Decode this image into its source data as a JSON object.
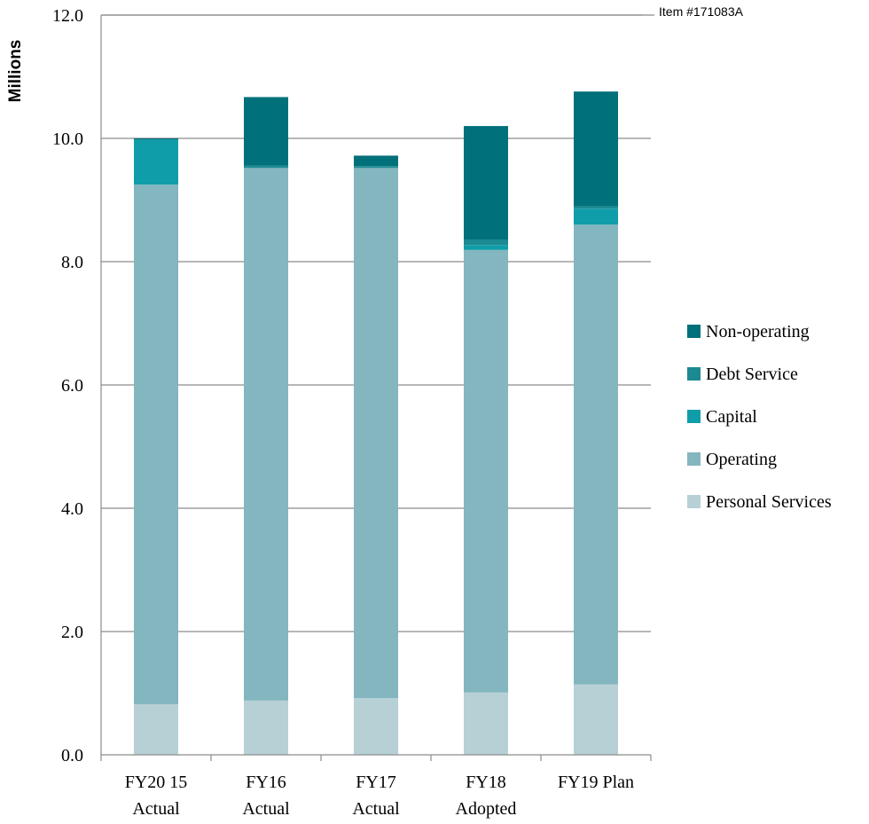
{
  "note": "Item #171083A",
  "chart_data": {
    "type": "bar",
    "stacked": true,
    "ylabel": "Millions",
    "ylim": [
      0,
      12
    ],
    "yticks": [
      "0.0",
      "2.0",
      "4.0",
      "6.0",
      "8.0",
      "10.0",
      "12.0"
    ],
    "grid": true,
    "legend_position": "right",
    "categories": [
      [
        "FY20 15",
        "Actual"
      ],
      [
        "FY16",
        "Actual"
      ],
      [
        "FY17",
        "Actual"
      ],
      [
        "FY18",
        "Adopted"
      ],
      [
        "FY19 Plan"
      ]
    ],
    "series": [
      {
        "name": "Personal Services",
        "color": "#b7d0d6",
        "values": [
          0.82,
          0.88,
          0.92,
          1.01,
          1.14
        ]
      },
      {
        "name": "Operating",
        "color": "#84b6bf",
        "values": [
          8.43,
          8.64,
          8.6,
          7.18,
          7.46
        ]
      },
      {
        "name": "Capital",
        "color": "#0f9ea9",
        "values": [
          0.73,
          0.0,
          0.0,
          0.08,
          0.26
        ]
      },
      {
        "name": "Debt Service",
        "color": "#1c8a93",
        "values": [
          0.0,
          0.04,
          0.03,
          0.09,
          0.04
        ]
      },
      {
        "name": "Non-operating",
        "color": "#00707a",
        "values": [
          0.02,
          1.11,
          0.17,
          1.84,
          1.86
        ]
      }
    ]
  }
}
